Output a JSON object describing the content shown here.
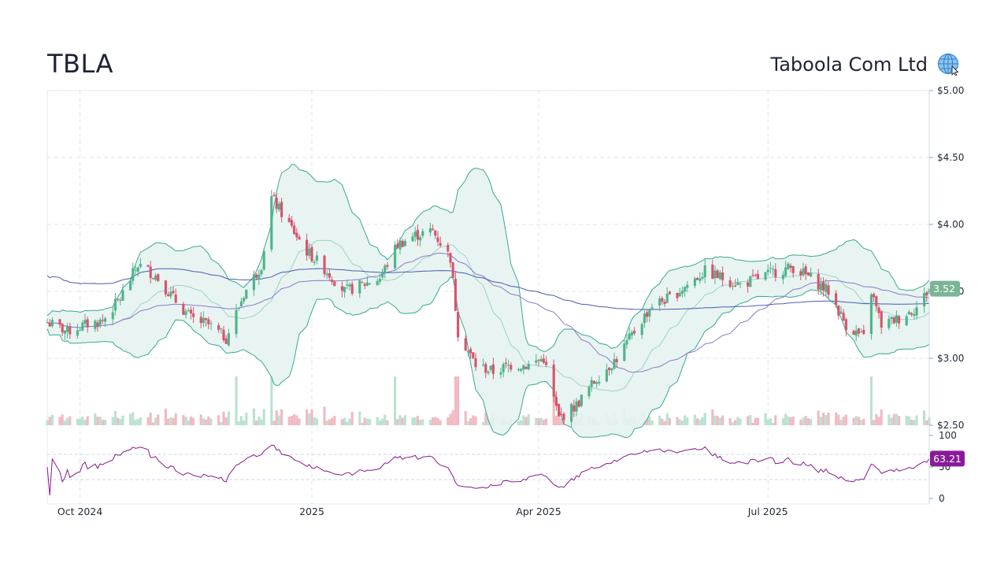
{
  "header": {
    "ticker": "TBLA",
    "company": "Taboola Com Ltd",
    "globe_icon": "globe-icon"
  },
  "colors": {
    "up": "#4fb38a",
    "down": "#d9536b",
    "band_fill": "#e6f3f1",
    "band_line": "#3aa893",
    "sma200": "#4a5ab0",
    "sma50": "#8b79c9",
    "sma20": "#9ed2c8",
    "rsi": "#8a1a8a",
    "last_price_tag": "#7bb597",
    "rsi_tag": "#8a1a9a"
  },
  "chart_data": {
    "type": "candlestick",
    "symbol": "TBLA",
    "price_axis": {
      "ticks": [
        "$5.00",
        "$4.50",
        "$4.00",
        "$3.50",
        "$3.00",
        "$2.50"
      ],
      "range": [
        2.5,
        5.0
      ]
    },
    "rsi_axis": {
      "ticks": [
        "100",
        "50",
        "0"
      ],
      "range": [
        0,
        100
      ],
      "guides": [
        30,
        70
      ]
    },
    "x_axis": {
      "labels": [
        "Oct 2024",
        "2025",
        "Apr 2025",
        "Jul 2025"
      ],
      "range": [
        "2024-09-18",
        "2025-09-03"
      ]
    },
    "last_price": "3.52",
    "last_rsi": "63.21",
    "price_anchors": [
      [
        "2024-09-18",
        3.27
      ],
      [
        "2024-09-26",
        3.2
      ],
      [
        "2024-10-03",
        3.25
      ],
      [
        "2024-10-10",
        3.28
      ],
      [
        "2024-10-17",
        3.45
      ],
      [
        "2024-10-24",
        3.7
      ],
      [
        "2024-10-31",
        3.62
      ],
      [
        "2024-11-07",
        3.45
      ],
      [
        "2024-11-14",
        3.3
      ],
      [
        "2024-11-21",
        3.25
      ],
      [
        "2024-11-28",
        3.15
      ],
      [
        "2024-12-05",
        3.48
      ],
      [
        "2024-12-12",
        3.7
      ],
      [
        "2024-12-16",
        4.2
      ],
      [
        "2024-12-23",
        4.0
      ],
      [
        "2024-12-30",
        3.8
      ],
      [
        "2025-01-07",
        3.65
      ],
      [
        "2025-01-14",
        3.5
      ],
      [
        "2025-01-21",
        3.55
      ],
      [
        "2025-01-28",
        3.6
      ],
      [
        "2025-02-04",
        3.85
      ],
      [
        "2025-02-11",
        3.92
      ],
      [
        "2025-02-18",
        3.95
      ],
      [
        "2025-02-25",
        3.75
      ],
      [
        "2025-02-28",
        3.2
      ],
      [
        "2025-03-07",
        2.95
      ],
      [
        "2025-03-14",
        2.9
      ],
      [
        "2025-03-21",
        2.95
      ],
      [
        "2025-03-28",
        2.95
      ],
      [
        "2025-04-03",
        3.0
      ],
      [
        "2025-04-09",
        2.55
      ],
      [
        "2025-04-16",
        2.65
      ],
      [
        "2025-04-24",
        2.85
      ],
      [
        "2025-05-02",
        3.0
      ],
      [
        "2025-05-09",
        3.2
      ],
      [
        "2025-05-16",
        3.4
      ],
      [
        "2025-05-23",
        3.45
      ],
      [
        "2025-05-30",
        3.55
      ],
      [
        "2025-06-06",
        3.65
      ],
      [
        "2025-06-13",
        3.6
      ],
      [
        "2025-06-20",
        3.55
      ],
      [
        "2025-06-27",
        3.6
      ],
      [
        "2025-07-04",
        3.65
      ],
      [
        "2025-07-11",
        3.68
      ],
      [
        "2025-07-18",
        3.6
      ],
      [
        "2025-07-25",
        3.5
      ],
      [
        "2025-08-01",
        3.25
      ],
      [
        "2025-08-08",
        3.15
      ],
      [
        "2025-08-11",
        3.5
      ],
      [
        "2025-08-15",
        3.25
      ],
      [
        "2025-08-22",
        3.3
      ],
      [
        "2025-08-29",
        3.38
      ],
      [
        "2025-09-03",
        3.52
      ]
    ]
  }
}
